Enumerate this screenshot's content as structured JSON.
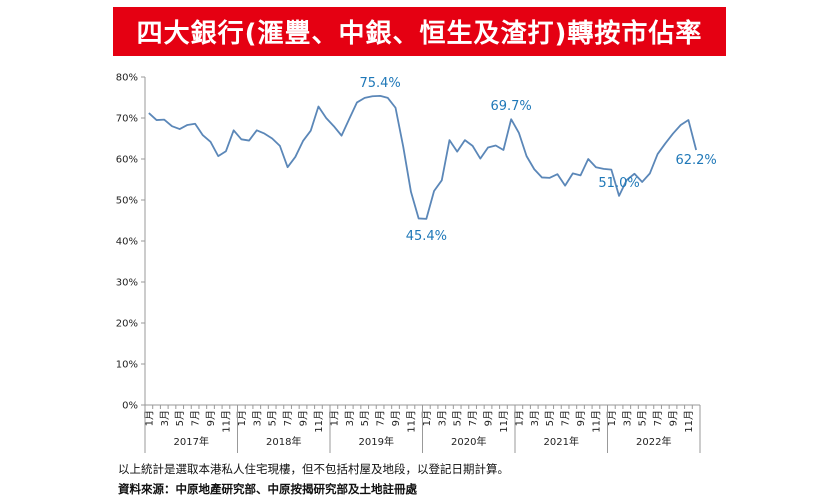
{
  "title": "四大銀行(滙豐、中銀、恒生及渣打)轉按市佔率",
  "notes": {
    "statement": "以上統計是選取本港私人住宅現樓，但不包括村屋及地段，以登記日期計算。",
    "source": "資料來源：中原地產研究部、中原按揭研究部及土地註冊處"
  },
  "colors": {
    "banner": "#e50012",
    "line": "#5b87b8",
    "labels": "#1f78b8",
    "axis": "#999999"
  },
  "chart_data": {
    "type": "line",
    "ylim": [
      0,
      80
    ],
    "y_ticks": [
      "0%",
      "10%",
      "20%",
      "30%",
      "40%",
      "50%",
      "60%",
      "70%",
      "80%"
    ],
    "x_tick_labels": [
      "1月",
      "3月",
      "5月",
      "7月",
      "9月",
      "11月"
    ],
    "years": [
      "2017年",
      "2018年",
      "2019年",
      "2020年",
      "2021年",
      "2022年"
    ],
    "series": [
      {
        "values": [
          71.2,
          69.5,
          69.6,
          68.0,
          67.3,
          68.3,
          68.6,
          65.8,
          64.2,
          60.7,
          61.9,
          67.0,
          64.8,
          64.5,
          67.0,
          66.2,
          65.0,
          63.2,
          58.0,
          60.5,
          64.4,
          66.9,
          72.8,
          70.0,
          68.0,
          65.7,
          69.8,
          73.8,
          74.9,
          75.3,
          75.4,
          74.9,
          72.5,
          63.0,
          52.0,
          45.5,
          45.4,
          52.2,
          54.8,
          64.6,
          61.8,
          64.6,
          63.2,
          60.1,
          62.8,
          63.3,
          62.2,
          69.7,
          66.4,
          60.7,
          57.5,
          55.5,
          55.4,
          56.3,
          53.5,
          56.5,
          56.0,
          60.0,
          58.0,
          57.6,
          57.4,
          51.0,
          54.9,
          56.4,
          54.4,
          56.5,
          61.2,
          63.8,
          66.2,
          68.3,
          69.5,
          62.2
        ]
      }
    ],
    "annotations": [
      {
        "index": 30,
        "text": "75.4%"
      },
      {
        "index": 36,
        "text": "45.4%"
      },
      {
        "index": 47,
        "text": "69.7%"
      },
      {
        "index": 61,
        "text": "51.0%"
      },
      {
        "index": 71,
        "text": "62.2%"
      }
    ]
  }
}
